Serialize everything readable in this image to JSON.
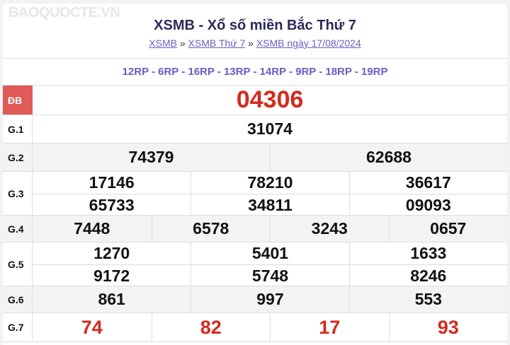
{
  "title": "XSMB - Xổ số miền Bắc Thứ 7",
  "breadcrumb": [
    {
      "label": "XSMB"
    },
    {
      "label": "XSMB Thứ 7"
    },
    {
      "label": "XSMB ngày 17/08/2024"
    }
  ],
  "separator": "»",
  "codes": "12RP - 6RP - 16RP - 13RP - 14RP - 9RP - 18RP - 19RP",
  "prizes": {
    "db": {
      "label": "ĐB",
      "values": [
        "04306"
      ]
    },
    "g1": {
      "label": "G.1",
      "values": [
        "31074"
      ]
    },
    "g2": {
      "label": "G.2",
      "values": [
        "74379",
        "62688"
      ]
    },
    "g3": {
      "label": "G.3",
      "values": [
        "17146",
        "78210",
        "36617",
        "65733",
        "34811",
        "09093"
      ]
    },
    "g4": {
      "label": "G.4",
      "values": [
        "7448",
        "6578",
        "3243",
        "0657"
      ]
    },
    "g5": {
      "label": "G.5",
      "values": [
        "1270",
        "5401",
        "1633",
        "9172",
        "5748",
        "8246"
      ]
    },
    "g6": {
      "label": "G.6",
      "values": [
        "861",
        "997",
        "553"
      ]
    },
    "g7": {
      "label": "G.7",
      "values": [
        "74",
        "82",
        "17",
        "93"
      ]
    }
  },
  "watermark": "BAOQUOCTE.VN",
  "colors": {
    "accent": "#d42a1e",
    "link": "#6b5cc2",
    "db_label_bg": "#e05a58"
  }
}
